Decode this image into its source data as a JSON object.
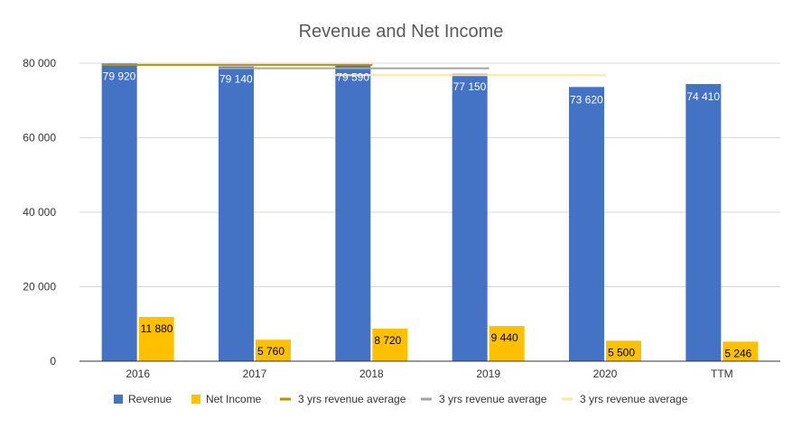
{
  "chart_data": {
    "type": "bar",
    "title": "Revenue and Net Income",
    "categories": [
      "2016",
      "2017",
      "2018",
      "2019",
      "2020",
      "TTM"
    ],
    "ylim": [
      0,
      80000
    ],
    "yticks": [
      0,
      20000,
      40000,
      60000,
      80000
    ],
    "ytick_labels": [
      "0",
      "20 000",
      "40 000",
      "60 000",
      "80 000"
    ],
    "grid": true,
    "legend_position": "bottom",
    "series": [
      {
        "name": "Revenue",
        "color": "#4472c4",
        "values": [
          79920,
          79140,
          79590,
          77150,
          73620,
          74410
        ],
        "labels": [
          "79 920",
          "79 140",
          "79 590",
          "77 150",
          "73 620",
          "74 410"
        ]
      },
      {
        "name": "Net Income",
        "color": "#ffc000",
        "values": [
          11880,
          5760,
          8720,
          9440,
          5500,
          5246
        ],
        "labels": [
          "11 880",
          "5 760",
          "8 720",
          "9 440",
          "5 500",
          "5 246"
        ]
      }
    ],
    "average_lines": [
      {
        "name": "3 yrs revenue average",
        "color": "#bf9000",
        "value": 79550,
        "from": "2016",
        "to": "2018"
      },
      {
        "name": "3 yrs revenue average",
        "color": "#a5a5a5",
        "value": 78627,
        "from": "2017",
        "to": "2019"
      },
      {
        "name": "3 yrs revenue average",
        "color": "#ffe699",
        "value": 76787,
        "from": "2018",
        "to": "2020"
      }
    ]
  }
}
